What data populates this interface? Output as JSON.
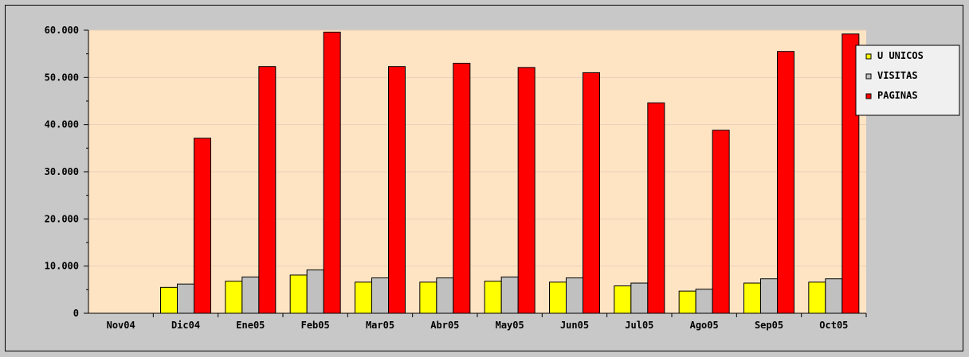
{
  "chart_data": {
    "type": "bar",
    "categories": [
      "Nov04",
      "Dic04",
      "Ene05",
      "Feb05",
      "Mar05",
      "Abr05",
      "May05",
      "Jun05",
      "Jul05",
      "Ago05",
      "Sep05",
      "Oct05"
    ],
    "series": [
      {
        "name": "U UNICOS",
        "color": "#ffff00",
        "values": [
          0,
          5500,
          6800,
          8100,
          6600,
          6600,
          6800,
          6600,
          5800,
          4700,
          6400,
          6600
        ]
      },
      {
        "name": "VISITAS",
        "color": "#c0c0c0",
        "values": [
          0,
          6200,
          7700,
          9200,
          7500,
          7500,
          7700,
          7500,
          6400,
          5100,
          7300,
          7300
        ]
      },
      {
        "name": "PAGINAS",
        "color": "#ff0000",
        "values": [
          0,
          37100,
          52300,
          59600,
          52300,
          53000,
          52100,
          51000,
          44600,
          38800,
          55500,
          59200
        ]
      }
    ],
    "y_ticks": [
      "0",
      "10.000",
      "20.000",
      "30.000",
      "40.000",
      "50.000",
      "60.000"
    ],
    "ylim": [
      0,
      60000
    ],
    "grid": true,
    "legend_position": "top-right",
    "plot_background": "#ffe4c4",
    "page_background": "#c8c8c8"
  }
}
